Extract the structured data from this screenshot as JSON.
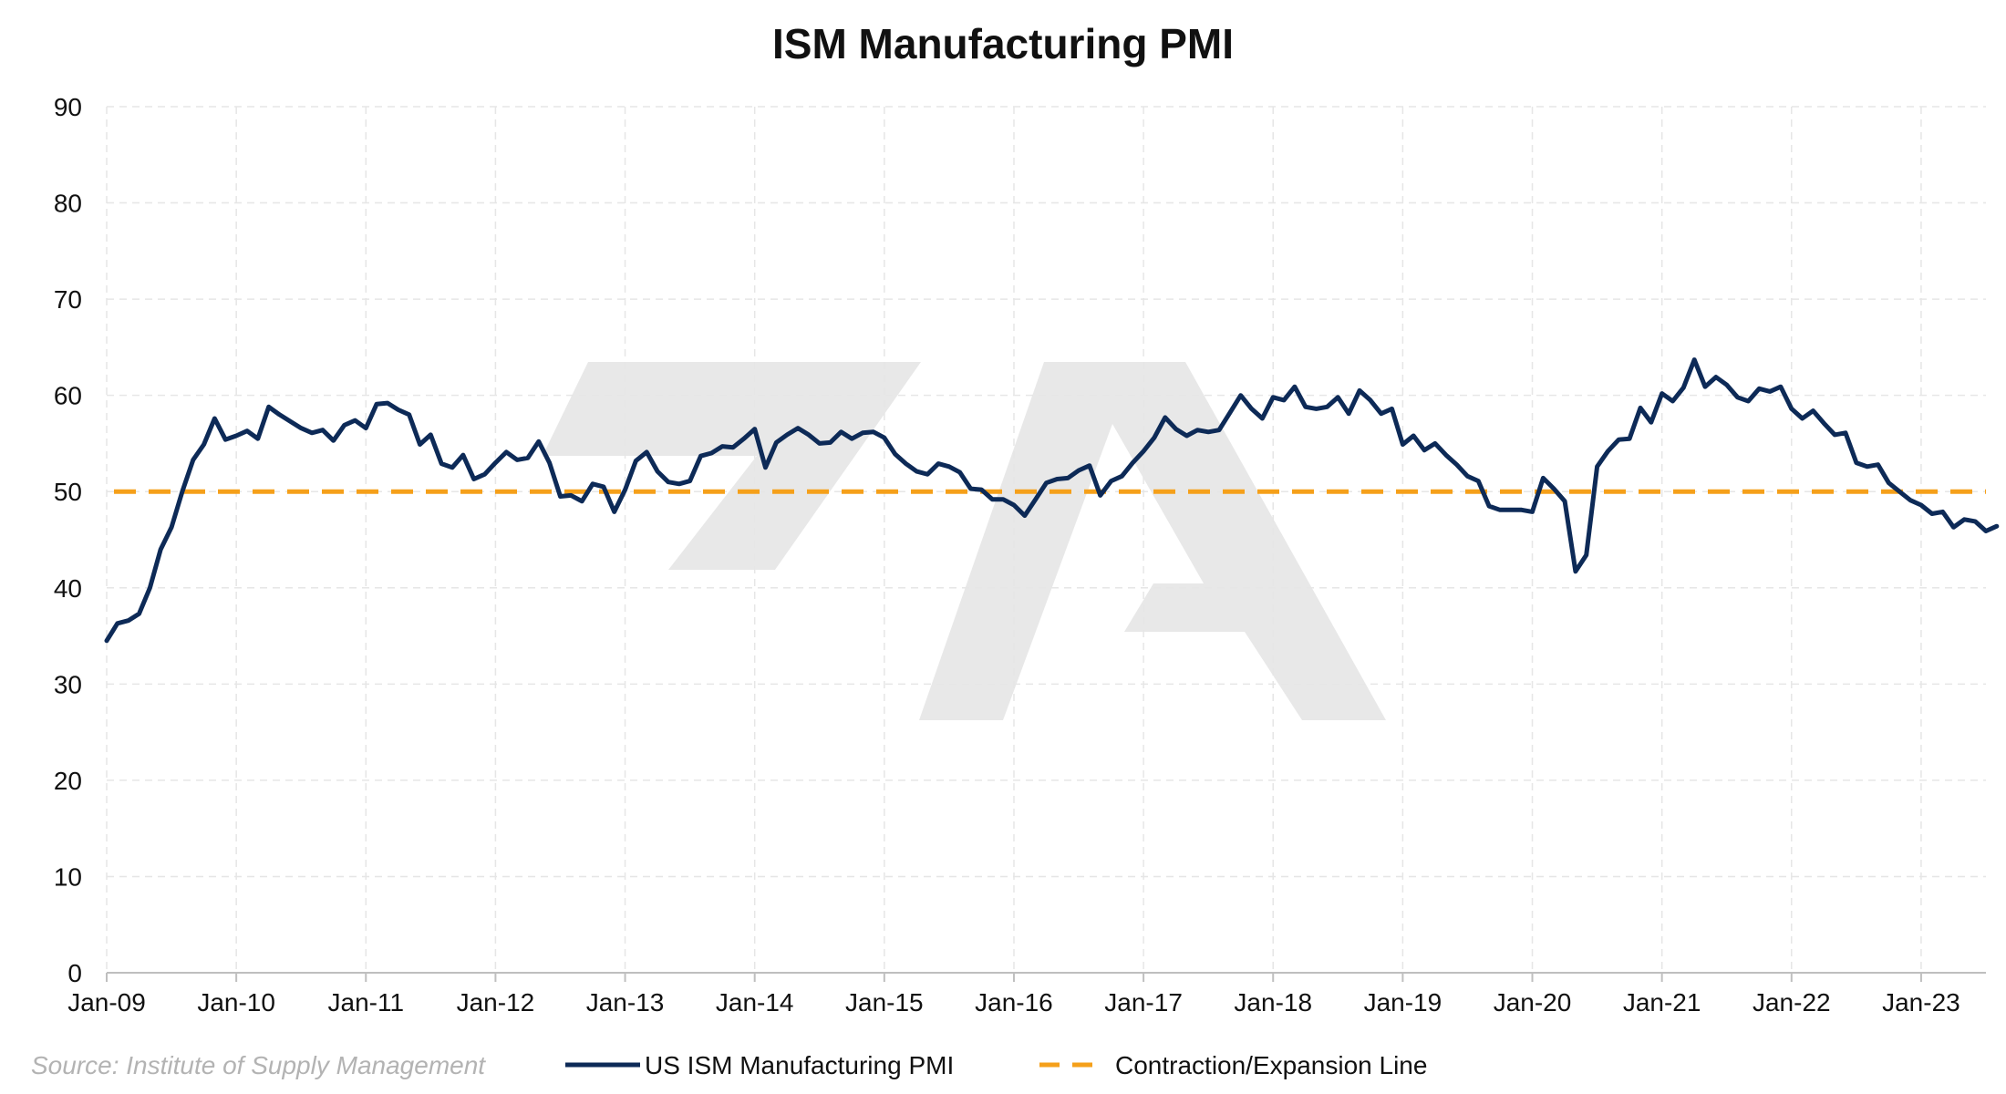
{
  "chart_data": {
    "type": "line",
    "title": "ISM Manufacturing PMI",
    "source": "Source: Institute of Supply Management",
    "ylim": [
      0,
      90
    ],
    "yticks": [
      0,
      10,
      20,
      30,
      40,
      50,
      60,
      70,
      80,
      90
    ],
    "xlim": [
      "2009-01",
      "2023-07"
    ],
    "xticks": [
      "Jan-09",
      "Jan-10",
      "Jan-11",
      "Jan-12",
      "Jan-13",
      "Jan-14",
      "Jan-15",
      "Jan-16",
      "Jan-17",
      "Jan-18",
      "Jan-19",
      "Jan-20",
      "Jan-21",
      "Jan-22",
      "Jan-23"
    ],
    "grid": true,
    "legend_position": "bottom",
    "colors": {
      "pmi": "#0d2a57",
      "threshold": "#f5a01a",
      "grid": "#e6e6e6",
      "watermark": "#e8e8e8"
    },
    "series": [
      {
        "name": "US ISM Manufacturing PMI",
        "style": "solid",
        "x_start": "2009-01",
        "frequency": "monthly",
        "values": [
          34.5,
          36.3,
          36.6,
          37.3,
          40.0,
          44.0,
          46.3,
          50.0,
          53.3,
          54.9,
          57.6,
          55.4,
          55.8,
          56.3,
          55.5,
          58.8,
          58.0,
          57.3,
          56.6,
          56.1,
          56.4,
          55.3,
          56.9,
          57.4,
          56.6,
          59.1,
          59.2,
          58.5,
          58.0,
          54.9,
          55.9,
          52.9,
          52.5,
          53.8,
          51.3,
          51.8,
          53.0,
          54.1,
          53.3,
          53.5,
          55.2,
          53.0,
          49.5,
          49.6,
          49.0,
          50.8,
          50.5,
          47.9,
          50.2,
          53.2,
          54.1,
          52.1,
          51.0,
          50.8,
          51.1,
          53.7,
          54.0,
          54.7,
          54.6,
          55.5,
          56.5,
          52.5,
          55.1,
          55.9,
          56.6,
          55.9,
          55.0,
          55.1,
          56.2,
          55.5,
          56.1,
          56.2,
          55.6,
          53.9,
          52.9,
          52.1,
          51.8,
          52.9,
          52.6,
          52.0,
          50.3,
          50.2,
          49.2,
          49.2,
          48.6,
          47.5,
          49.2,
          50.9,
          51.3,
          51.4,
          52.2,
          52.7,
          49.6,
          51.1,
          51.6,
          53.0,
          54.2,
          55.6,
          57.7,
          56.5,
          55.8,
          56.4,
          56.2,
          56.4,
          58.2,
          60.0,
          58.6,
          57.6,
          59.8,
          59.5,
          60.9,
          58.8,
          58.6,
          58.8,
          59.8,
          58.1,
          60.5,
          59.5,
          58.1,
          58.6,
          54.9,
          55.8,
          54.3,
          55.0,
          53.8,
          52.8,
          51.6,
          51.1,
          48.5,
          48.1,
          48.1,
          48.1,
          47.9,
          51.4,
          50.3,
          49.0,
          41.7,
          43.4,
          52.6,
          54.2,
          55.4,
          55.5,
          58.7,
          57.2,
          60.2,
          59.4,
          60.8,
          63.7,
          60.9,
          61.9,
          61.1,
          59.8,
          59.4,
          60.7,
          60.4,
          60.9,
          58.6,
          57.6,
          58.4,
          57.1,
          55.9,
          56.1,
          53.0,
          52.6,
          52.8,
          50.9,
          50.0,
          49.1,
          48.6,
          47.7,
          47.9,
          46.3,
          47.1,
          46.9,
          45.9,
          46.4
        ]
      },
      {
        "name": "Contraction/Expansion Line",
        "style": "dashed",
        "constant": 50
      }
    ]
  }
}
